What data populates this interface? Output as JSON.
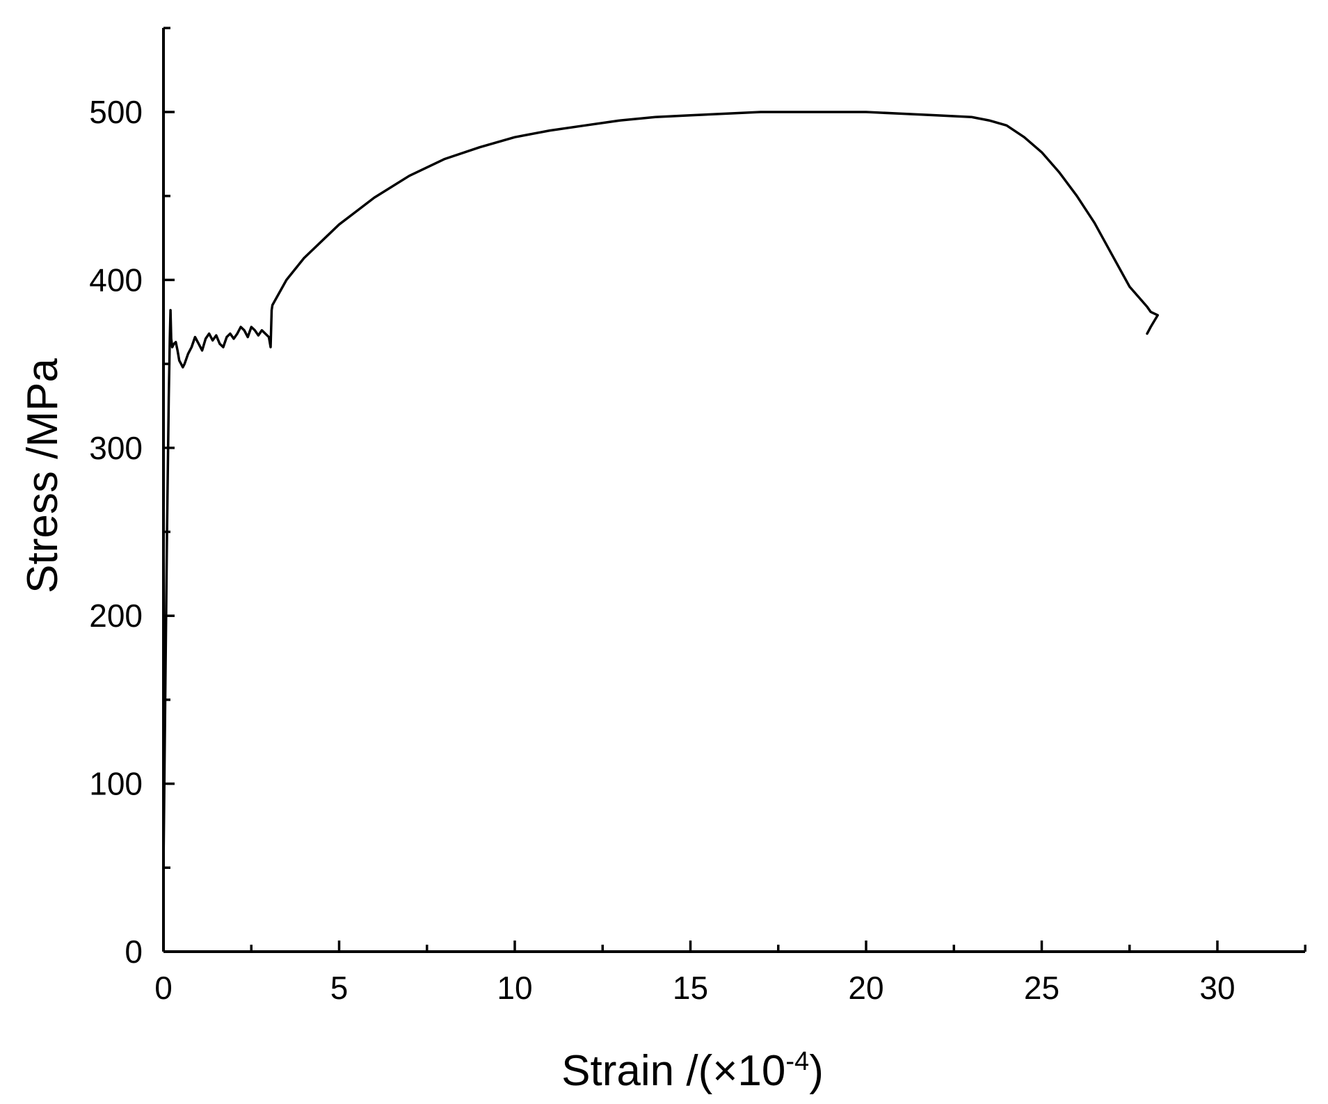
{
  "chart_data": {
    "type": "line",
    "xlabel": "Strain /(×10",
    "xlabel_sup": "-4",
    "xlabel_end": ")",
    "ylabel": "Stress /MPa",
    "xlim": [
      0,
      32.5
    ],
    "ylim": [
      0,
      550
    ],
    "x_major_ticks": [
      0,
      5,
      10,
      15,
      20,
      25,
      30
    ],
    "x_minor_ticks": [
      2.5,
      7.5,
      12.5,
      17.5,
      22.5,
      27.5,
      32.5
    ],
    "y_major_ticks": [
      0,
      100,
      200,
      300,
      400,
      500
    ],
    "y_minor_ticks": [
      50,
      150,
      250,
      350,
      450,
      550
    ],
    "x_tick_labels": [
      "0",
      "5",
      "10",
      "15",
      "20",
      "25",
      "30"
    ],
    "y_tick_labels": [
      "0",
      "100",
      "200",
      "300",
      "400",
      "500"
    ],
    "grid": false,
    "series": [
      {
        "x": [
          0.0,
          0.05,
          0.1,
          0.15,
          0.18,
          0.2,
          0.22,
          0.25,
          0.3,
          0.35,
          0.4,
          0.45,
          0.5,
          0.55,
          0.6,
          0.65,
          0.7,
          0.8,
          0.9,
          1.0,
          1.1,
          1.2,
          1.3,
          1.4,
          1.5,
          1.6,
          1.7,
          1.8,
          1.9,
          2.0,
          2.1,
          2.2,
          2.3,
          2.4,
          2.5,
          2.6,
          2.7,
          2.8,
          2.9,
          3.0,
          3.05,
          3.08,
          3.1,
          3.5,
          4.0,
          5.0,
          6.0,
          7.0,
          8.0,
          9.0,
          10.0,
          11.0,
          12.0,
          13.0,
          14.0,
          15.0,
          16.0,
          17.0,
          18.0,
          19.0,
          20.0,
          21.0,
          22.0,
          23.0,
          23.5,
          24.0,
          24.5,
          25.0,
          25.5,
          26.0,
          26.5,
          27.0,
          27.5,
          28.0,
          28.1,
          28.2,
          28.3,
          28.1,
          28.0
        ],
        "y": [
          50,
          150,
          250,
          330,
          365,
          382,
          365,
          360,
          362,
          363,
          358,
          352,
          350,
          348,
          350,
          353,
          356,
          360,
          366,
          362,
          358,
          365,
          368,
          364,
          367,
          362,
          360,
          366,
          368,
          365,
          368,
          372,
          370,
          366,
          372,
          370,
          367,
          370,
          368,
          366,
          360,
          382,
          385,
          400,
          413,
          433,
          449,
          462,
          472,
          479,
          485,
          489,
          492,
          495,
          497,
          498,
          499,
          500,
          500,
          500,
          500,
          499,
          498,
          497,
          495,
          492,
          485,
          476,
          464,
          450,
          434,
          415,
          396,
          384,
          381,
          380,
          379,
          372,
          368
        ]
      }
    ]
  }
}
